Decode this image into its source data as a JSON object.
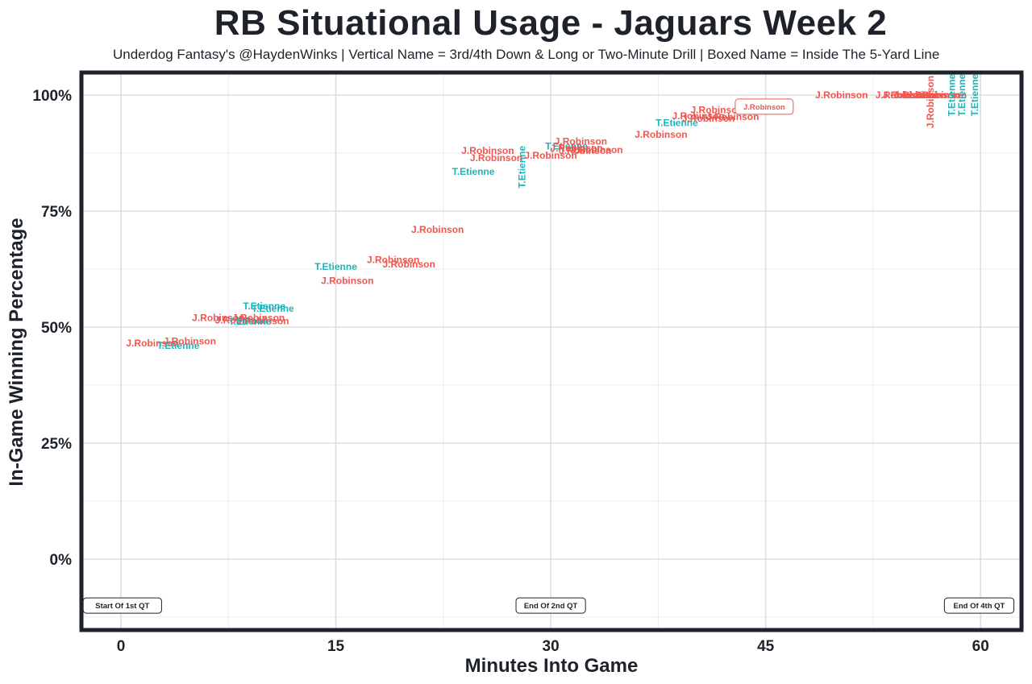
{
  "chart_data": {
    "type": "scatter",
    "title": "RB Situational Usage - Jaguars Week 2",
    "subtitle": "Underdog Fantasy's @HaydenWinks | Vertical Name = 3rd/4th Down & Long or Two-Minute Drill | Boxed Name = Inside The 5-Yard Line",
    "xlabel": "Minutes Into Game",
    "ylabel": "In-Game Winning Percentage",
    "xlim": [
      -2.8,
      63.2
    ],
    "ylim": [
      -15.5,
      105
    ],
    "x_ticks": [
      0,
      15,
      30,
      45,
      60
    ],
    "x_tick_labels": [
      "0",
      "15",
      "30",
      "45",
      "60"
    ],
    "y_ticks": [
      0,
      25,
      50,
      75,
      100
    ],
    "y_tick_labels": [
      "0%",
      "25%",
      "50%",
      "75%",
      "100%"
    ],
    "grid": true,
    "annotations": [
      {
        "text": "Start Of 1st QT",
        "x": 0.1,
        "y": -10
      },
      {
        "text": "End Of 2nd QT",
        "x": 30,
        "y": -10
      },
      {
        "text": "End Of 4th QT",
        "x": 59.9,
        "y": -10
      }
    ],
    "colors": {
      "J.Robinson": "#f0564f",
      "T.Etienne": "#1bb5bb"
    },
    "points": [
      {
        "player": "J.Robinson",
        "x": 2.2,
        "y": 46.5,
        "vertical": false,
        "boxed": false
      },
      {
        "player": "J.Robinson",
        "x": 4.8,
        "y": 47.0,
        "vertical": false,
        "boxed": false
      },
      {
        "player": "T.Etienne",
        "x": 4.0,
        "y": 46.0,
        "vertical": false,
        "boxed": false
      },
      {
        "player": "J.Robinson",
        "x": 6.8,
        "y": 52.0,
        "vertical": false,
        "boxed": false
      },
      {
        "player": "J.Robinson",
        "x": 8.4,
        "y": 51.5,
        "vertical": false,
        "boxed": false
      },
      {
        "player": "J.Robinson",
        "x": 9.6,
        "y": 52.0,
        "vertical": false,
        "boxed": false
      },
      {
        "player": "J.Robinson",
        "x": 9.9,
        "y": 51.3,
        "vertical": false,
        "boxed": false
      },
      {
        "player": "T.Etienne",
        "x": 9.0,
        "y": 51.2,
        "vertical": false,
        "boxed": false
      },
      {
        "player": "T.Etienne",
        "x": 10.0,
        "y": 54.5,
        "vertical": false,
        "boxed": false
      },
      {
        "player": "T.Etienne",
        "x": 10.6,
        "y": 54.0,
        "vertical": false,
        "boxed": false
      },
      {
        "player": "J.Robinson",
        "x": 15.8,
        "y": 60.0,
        "vertical": false,
        "boxed": false
      },
      {
        "player": "T.Etienne",
        "x": 15.0,
        "y": 63.0,
        "vertical": false,
        "boxed": false
      },
      {
        "player": "J.Robinson",
        "x": 19.0,
        "y": 64.5,
        "vertical": false,
        "boxed": false
      },
      {
        "player": "J.Robinson",
        "x": 20.1,
        "y": 63.5,
        "vertical": false,
        "boxed": false
      },
      {
        "player": "J.Robinson",
        "x": 22.1,
        "y": 71.0,
        "vertical": false,
        "boxed": false
      },
      {
        "player": "T.Etienne",
        "x": 24.6,
        "y": 83.5,
        "vertical": false,
        "boxed": false
      },
      {
        "player": "J.Robinson",
        "x": 25.6,
        "y": 88.0,
        "vertical": false,
        "boxed": false
      },
      {
        "player": "J.Robinson",
        "x": 26.2,
        "y": 86.5,
        "vertical": false,
        "boxed": false
      },
      {
        "player": "T.Etienne",
        "x": 28.0,
        "y": 84.5,
        "vertical": true,
        "boxed": false
      },
      {
        "player": "J.Robinson",
        "x": 30.0,
        "y": 87.0,
        "vertical": false,
        "boxed": false
      },
      {
        "player": "T.Etienne",
        "x": 31.1,
        "y": 89.0,
        "vertical": false,
        "boxed": false
      },
      {
        "player": "J.Robinson",
        "x": 31.8,
        "y": 88.5,
        "vertical": false,
        "boxed": false
      },
      {
        "player": "J.Robinson",
        "x": 32.1,
        "y": 90.0,
        "vertical": false,
        "boxed": false
      },
      {
        "player": "J.Robinson",
        "x": 32.4,
        "y": 88.0,
        "vertical": false,
        "boxed": false
      },
      {
        "player": "J.Robinson",
        "x": 33.2,
        "y": 88.2,
        "vertical": false,
        "boxed": false
      },
      {
        "player": "J.Robinson",
        "x": 37.7,
        "y": 91.5,
        "vertical": false,
        "boxed": false
      },
      {
        "player": "T.Etienne",
        "x": 38.8,
        "y": 94.0,
        "vertical": false,
        "boxed": false
      },
      {
        "player": "J.Robinson",
        "x": 40.3,
        "y": 95.5,
        "vertical": false,
        "boxed": false
      },
      {
        "player": "J.Robinson",
        "x": 41.0,
        "y": 95.0,
        "vertical": false,
        "boxed": false
      },
      {
        "player": "J.Robinson",
        "x": 41.6,
        "y": 96.8,
        "vertical": false,
        "boxed": false
      },
      {
        "player": "J.Robinson",
        "x": 42.7,
        "y": 95.3,
        "vertical": false,
        "boxed": false
      },
      {
        "player": "J.Robinson",
        "x": 44.9,
        "y": 97.5,
        "vertical": false,
        "boxed": true
      },
      {
        "player": "J.Robinson",
        "x": 50.3,
        "y": 100.0,
        "vertical": false,
        "boxed": false
      },
      {
        "player": "J.Robinson",
        "x": 54.5,
        "y": 100.0,
        "vertical": false,
        "boxed": false
      },
      {
        "player": "J.Robinson",
        "x": 55.0,
        "y": 100.0,
        "vertical": false,
        "boxed": false
      },
      {
        "player": "J.Robinson",
        "x": 55.8,
        "y": 100.0,
        "vertical": false,
        "boxed": false
      },
      {
        "player": "J.Robinson",
        "x": 56.7,
        "y": 100.0,
        "vertical": false,
        "boxed": false
      },
      {
        "player": "J.Robinson",
        "x": 57.2,
        "y": 100.0,
        "vertical": false,
        "boxed": false
      },
      {
        "player": "J.Robinson",
        "x": 56.5,
        "y": 98.5,
        "vertical": true,
        "boxed": false
      },
      {
        "player": "T.Etienne",
        "x": 58.0,
        "y": 100.0,
        "vertical": true,
        "boxed": false
      },
      {
        "player": "T.Etienne",
        "x": 58.7,
        "y": 100.0,
        "vertical": true,
        "boxed": false
      },
      {
        "player": "T.Etienne",
        "x": 59.6,
        "y": 100.0,
        "vertical": true,
        "boxed": false
      }
    ]
  }
}
